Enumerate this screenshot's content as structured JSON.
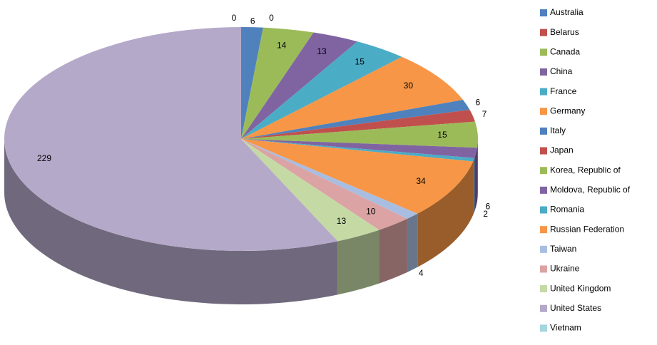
{
  "chart_data": {
    "type": "pie",
    "categories": [
      "Australia",
      "Belarus",
      "Canada",
      "China",
      "France",
      "Germany",
      "Italy",
      "Japan",
      "Korea, Republic of",
      "Moldova, Republic of",
      "Romania",
      "Russian Federation",
      "Taiwan",
      "Ukraine",
      "United Kingdom",
      "United States",
      "Vietnam"
    ],
    "values": [
      6,
      0,
      14,
      13,
      15,
      30,
      6,
      7,
      15,
      6,
      2,
      34,
      4,
      10,
      13,
      229,
      0
    ],
    "colors": [
      "#4f81bd",
      "#c0504d",
      "#9bbb59",
      "#8064a2",
      "#4bacc6",
      "#f79646",
      "#4f81bd",
      "#c0504d",
      "#9bbb59",
      "#8064a2",
      "#4bacc6",
      "#f79646",
      "#a9bde0",
      "#dba3a3",
      "#c5d9a5",
      "#b5a9c9",
      "#a5d5e1"
    ]
  }
}
